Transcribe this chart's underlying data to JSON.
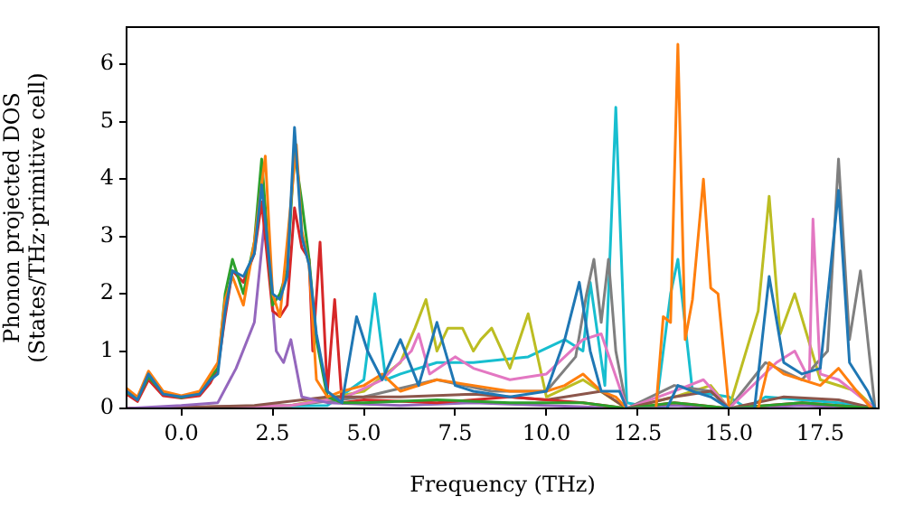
{
  "chart_data": {
    "type": "line",
    "xlabel": "Frequency (THz)",
    "ylabel": "Phonon projected DOS\n(States/THz·primitive cell)",
    "xlim": [
      -1.5,
      19.1
    ],
    "ylim": [
      0,
      6.65
    ],
    "xticks": [
      {
        "value": 0,
        "label": "0.0"
      },
      {
        "value": 2.5,
        "label": "2.5"
      },
      {
        "value": 5,
        "label": "5.0"
      },
      {
        "value": 7.5,
        "label": "7.5"
      },
      {
        "value": 10,
        "label": "10.0"
      },
      {
        "value": 12.5,
        "label": "12.5"
      },
      {
        "value": 15,
        "label": "15.0"
      },
      {
        "value": 17.5,
        "label": "17.5"
      }
    ],
    "yticks": [
      0,
      1,
      2,
      3,
      4,
      5,
      6
    ],
    "grid": false,
    "legend": false,
    "series": [
      {
        "color": "#1f77b4",
        "x": [
          -1.5,
          -1.2,
          -0.9,
          -0.5,
          0,
          0.5,
          0.8,
          1.0,
          1.2,
          1.4,
          1.7,
          2.0,
          2.2,
          2.5,
          2.7,
          2.9,
          3.1,
          3.3,
          3.5,
          3.7,
          4.0,
          4.4,
          4.8,
          5.1,
          5.5,
          6.0,
          6.5,
          7.0,
          7.5,
          8,
          9,
          10,
          10.5,
          10.9,
          11.2,
          11.5,
          12.0,
          12.2,
          13.3,
          13.6,
          14,
          14.5,
          15.0,
          15.7,
          16.1,
          16.5,
          17,
          17.5,
          18.0,
          18.3,
          18.8,
          19.0
        ],
        "values": [
          0.3,
          0.15,
          0.6,
          0.25,
          0.2,
          0.25,
          0.5,
          0.6,
          1.7,
          2.4,
          2.3,
          2.7,
          3.9,
          2.0,
          1.9,
          2.3,
          4.9,
          3.0,
          2.5,
          1.3,
          0.3,
          0.1,
          1.6,
          1.0,
          0.5,
          1.2,
          0.4,
          1.5,
          0.4,
          0.3,
          0.2,
          0.3,
          1.2,
          2.2,
          1.0,
          0.3,
          0.3,
          0,
          0,
          0.4,
          0.3,
          0.2,
          0,
          0,
          2.3,
          0.8,
          0.6,
          0.7,
          3.8,
          0.8,
          0.3,
          0
        ]
      },
      {
        "color": "#ff7f0e",
        "x": [
          -1.5,
          -1.2,
          -0.9,
          -0.5,
          0,
          0.5,
          0.8,
          1.0,
          1.2,
          1.4,
          1.7,
          2.0,
          2.3,
          2.5,
          2.7,
          2.9,
          3.15,
          3.3,
          3.5,
          3.7,
          4.0,
          4.4,
          5.0,
          5.5,
          6.0,
          6.5,
          7,
          8,
          9,
          10,
          10.5,
          11,
          11.5,
          11.9,
          12.2,
          13.0,
          13.2,
          13.4,
          13.6,
          13.8,
          14.0,
          14.3,
          14.5,
          14.7,
          15.0,
          15.8,
          16.1,
          16.5,
          17.0,
          17.5,
          18.0,
          18.5,
          18.9
        ],
        "values": [
          0.35,
          0.2,
          0.65,
          0.3,
          0.22,
          0.3,
          0.6,
          0.8,
          1.9,
          2.3,
          1.8,
          2.9,
          4.4,
          2.0,
          1.6,
          2.9,
          4.6,
          3.1,
          2.5,
          0.5,
          0.2,
          0.3,
          0.4,
          0.6,
          0.3,
          0.4,
          0.5,
          0.4,
          0.3,
          0.3,
          0.4,
          0.6,
          0.3,
          0.2,
          0,
          0,
          1.6,
          1.5,
          6.35,
          1.2,
          1.9,
          4.0,
          2.1,
          2.0,
          0,
          0,
          0.8,
          0.6,
          0.5,
          0.4,
          0.7,
          0.3,
          0
        ]
      },
      {
        "color": "#2ca02c",
        "x": [
          -1.5,
          -1.2,
          -0.9,
          -0.5,
          0,
          0.5,
          0.8,
          1.0,
          1.2,
          1.4,
          1.7,
          2.0,
          2.2,
          2.5,
          2.7,
          2.9,
          3.1,
          3.3,
          3.5,
          3.7,
          4.0,
          4.4,
          5,
          7,
          9,
          11,
          12.2,
          13.5,
          15,
          17,
          19
        ],
        "values": [
          0.28,
          0.17,
          0.55,
          0.27,
          0.19,
          0.27,
          0.55,
          0.7,
          2.0,
          2.6,
          2.0,
          2.9,
          4.35,
          1.8,
          2.0,
          2.4,
          4.5,
          3.6,
          2.6,
          1.2,
          0.2,
          0.1,
          0.1,
          0.15,
          0.1,
          0.1,
          0,
          0.1,
          0,
          0.1,
          0
        ]
      },
      {
        "color": "#d62728",
        "x": [
          -1.5,
          -1.2,
          -0.9,
          -0.5,
          0,
          0.5,
          0.8,
          1.0,
          1.2,
          1.4,
          1.7,
          2.0,
          2.2,
          2.5,
          2.7,
          2.9,
          3.1,
          3.3,
          3.5,
          3.6,
          3.8,
          4.0,
          4.2,
          4.4,
          5,
          7,
          9,
          11,
          12.2,
          13.5,
          15,
          17,
          19
        ],
        "values": [
          0.25,
          0.12,
          0.5,
          0.22,
          0.18,
          0.22,
          0.45,
          0.7,
          1.6,
          2.4,
          2.2,
          2.7,
          3.6,
          1.7,
          1.6,
          1.8,
          3.5,
          2.8,
          2.6,
          1.0,
          2.9,
          0.3,
          1.9,
          0.1,
          0.15,
          0.1,
          0.2,
          0.1,
          0,
          0.1,
          0,
          0.1,
          0
        ]
      },
      {
        "color": "#9467bd",
        "x": [
          -1.5,
          0,
          1.0,
          1.5,
          2.0,
          2.3,
          2.6,
          2.8,
          3.0,
          3.3,
          4,
          6,
          8,
          10,
          12.2,
          13.5,
          15,
          17,
          19
        ],
        "values": [
          0,
          0.05,
          0.1,
          0.7,
          1.5,
          3.4,
          1.0,
          0.8,
          1.2,
          0.2,
          0.1,
          0.05,
          0.1,
          0.05,
          0,
          0.05,
          0,
          0.05,
          0
        ]
      },
      {
        "color": "#8c564b",
        "x": [
          -1.5,
          2,
          4,
          6,
          8,
          10,
          11.5,
          12.2,
          13.5,
          14.5,
          15,
          16.5,
          18,
          19
        ],
        "values": [
          0,
          0.05,
          0.2,
          0.2,
          0.25,
          0.15,
          0.3,
          0,
          0.2,
          0.3,
          0,
          0.2,
          0.15,
          0
        ]
      },
      {
        "color": "#e377c2",
        "x": [
          -1.5,
          3,
          4.5,
          5.5,
          6.3,
          6.5,
          6.8,
          7.5,
          8,
          9,
          10,
          11.0,
          11.5,
          12.2,
          13.5,
          14.3,
          15,
          16.3,
          16.8,
          17.2,
          17.3,
          17.5,
          18,
          19
        ],
        "values": [
          0,
          0.05,
          0.2,
          0.5,
          1.0,
          1.3,
          0.6,
          0.9,
          0.7,
          0.5,
          0.6,
          1.2,
          1.3,
          0,
          0.3,
          0.5,
          0,
          0.8,
          1.0,
          0.5,
          3.3,
          0.6,
          0.5,
          0
        ]
      },
      {
        "color": "#7f7f7f",
        "x": [
          -1.5,
          3,
          5,
          7,
          8.5,
          10,
          10.8,
          11.1,
          11.3,
          11.5,
          11.7,
          11.9,
          12.2,
          13.5,
          14.5,
          15,
          16,
          17,
          17.7,
          18.0,
          18.3,
          18.6,
          19.0
        ],
        "values": [
          0,
          0.05,
          0.2,
          0.5,
          0.3,
          0.3,
          0.9,
          2.0,
          2.6,
          1.5,
          2.6,
          1.0,
          0,
          0.4,
          0.3,
          0,
          0.8,
          0.5,
          1.0,
          4.35,
          1.2,
          2.4,
          0
        ]
      },
      {
        "color": "#bcbd22",
        "x": [
          -1.5,
          3,
          5,
          6.0,
          6.4,
          6.7,
          7.0,
          7.3,
          7.7,
          8.0,
          8.2,
          8.5,
          9.0,
          9.5,
          10,
          11,
          12.2,
          13.5,
          14.5,
          15,
          15.8,
          16.1,
          16.4,
          16.8,
          17.5,
          18.5,
          19
        ],
        "values": [
          0,
          0.05,
          0.3,
          0.8,
          1.4,
          1.9,
          1.0,
          1.4,
          1.4,
          1.0,
          1.2,
          1.4,
          0.7,
          1.65,
          0.2,
          0.5,
          0,
          0.2,
          0.4,
          0,
          1.7,
          3.7,
          1.3,
          2.0,
          0.5,
          0.3,
          0
        ]
      },
      {
        "color": "#17becf",
        "x": [
          -1.5,
          4.0,
          5.0,
          5.3,
          5.6,
          6.0,
          7.0,
          8.0,
          9.5,
          10.5,
          11.0,
          11.2,
          11.6,
          11.9,
          12.2,
          13.0,
          13.4,
          13.6,
          14.0,
          15.0,
          15.5,
          16.0,
          18.0,
          19.0
        ],
        "values": [
          0,
          0.05,
          0.5,
          2.0,
          0.5,
          0.6,
          0.8,
          0.8,
          0.9,
          1.2,
          1.0,
          2.2,
          0.4,
          5.25,
          0.1,
          0,
          2.0,
          2.6,
          0.3,
          0.2,
          0,
          0.2,
          0.1,
          0
        ]
      }
    ]
  }
}
